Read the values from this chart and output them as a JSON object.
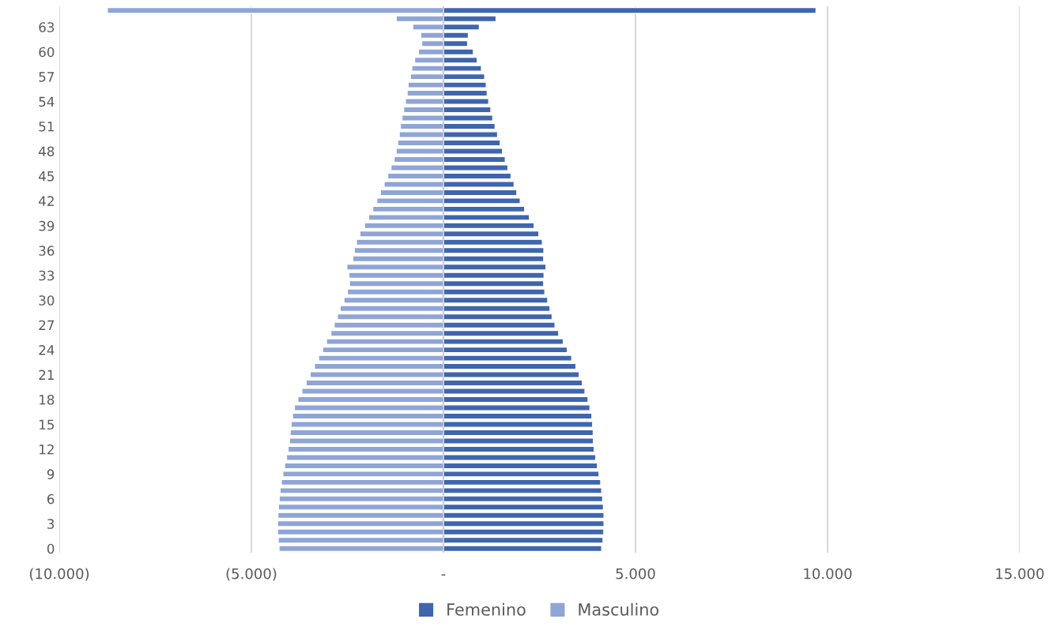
{
  "chart_data": {
    "type": "bar",
    "orientation": "horizontal",
    "stacked": true,
    "categories": [
      null,
      null,
      "63",
      null,
      null,
      "60",
      null,
      null,
      "57",
      null,
      null,
      "54",
      null,
      null,
      "51",
      null,
      null,
      "48",
      null,
      null,
      "45",
      null,
      null,
      "42",
      null,
      null,
      "39",
      null,
      null,
      "36",
      null,
      null,
      "33",
      null,
      null,
      "30",
      null,
      null,
      "27",
      null,
      null,
      "24",
      null,
      null,
      "21",
      null,
      null,
      "18",
      null,
      null,
      "15",
      null,
      null,
      "12",
      null,
      null,
      "9",
      null,
      null,
      "6",
      null,
      null,
      "3",
      null,
      null,
      "0"
    ],
    "series": [
      {
        "name": "Femenino",
        "color": "#3f65ae",
        "values": [
          9700,
          1370,
          935,
          650,
          630,
          780,
          880,
          990,
          1075,
          1115,
          1140,
          1180,
          1235,
          1285,
          1345,
          1410,
          1480,
          1540,
          1610,
          1680,
          1760,
          1840,
          1910,
          2000,
          2115,
          2240,
          2360,
          2485,
          2575,
          2615,
          2610,
          2670,
          2620,
          2610,
          2640,
          2715,
          2775,
          2830,
          2905,
          3000,
          3120,
          3225,
          3340,
          3450,
          3535,
          3615,
          3685,
          3765,
          3815,
          3865,
          3885,
          3900,
          3905,
          3925,
          3965,
          4010,
          4050,
          4095,
          4120,
          4145,
          4165,
          4180,
          4180,
          4175,
          4155,
          4120
        ]
      },
      {
        "name": "Masculino",
        "color": "#8fa5d6",
        "values": [
          -8750,
          -1230,
          -800,
          -590,
          -565,
          -650,
          -750,
          -825,
          -860,
          -920,
          -945,
          -990,
          -1035,
          -1080,
          -1120,
          -1150,
          -1190,
          -1230,
          -1285,
          -1365,
          -1450,
          -1545,
          -1640,
          -1735,
          -1840,
          -1950,
          -2055,
          -2175,
          -2265,
          -2320,
          -2360,
          -2515,
          -2460,
          -2445,
          -2500,
          -2590,
          -2690,
          -2760,
          -2845,
          -2930,
          -3045,
          -3145,
          -3250,
          -3360,
          -3470,
          -3575,
          -3685,
          -3790,
          -3880,
          -3930,
          -3965,
          -3990,
          -4010,
          -4045,
          -4085,
          -4135,
          -4180,
          -4220,
          -4255,
          -4275,
          -4295,
          -4310,
          -4315,
          -4315,
          -4300,
          -4280
        ]
      }
    ],
    "xlim": [
      -10000,
      15000
    ],
    "xticks": [
      {
        "value": -10000,
        "label": "(10.000)"
      },
      {
        "value": -5000,
        "label": "(5.000)"
      },
      {
        "value": 0,
        "label": "-"
      },
      {
        "value": 5000,
        "label": "5.000"
      },
      {
        "value": 10000,
        "label": "10.000"
      },
      {
        "value": 15000,
        "label": "15.000"
      }
    ],
    "grid": "x",
    "legend": "bottom"
  }
}
